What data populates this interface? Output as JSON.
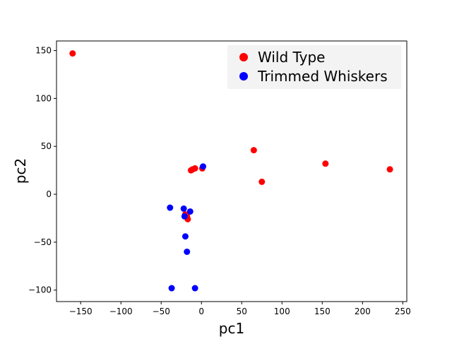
{
  "chart_data": {
    "type": "scatter",
    "title": "",
    "xlabel": "pc1",
    "ylabel": "pc2",
    "xlim": [
      -180,
      255
    ],
    "ylim": [
      -112,
      160
    ],
    "xticks": [
      -150,
      -100,
      -50,
      0,
      50,
      100,
      150,
      200,
      250
    ],
    "yticks": [
      -100,
      -50,
      0,
      50,
      100,
      150
    ],
    "xtick_labels": [
      "−150",
      "−100",
      "−50",
      "0",
      "50",
      "100",
      "150",
      "200",
      "250"
    ],
    "ytick_labels": [
      "−100",
      "−50",
      "0",
      "50",
      "100",
      "150"
    ],
    "grid": false,
    "legend_position": "top-right",
    "series": [
      {
        "name": "Wild Type",
        "color": "#ff0000",
        "points": [
          [
            -160,
            147
          ],
          [
            65,
            46
          ],
          [
            154,
            32
          ],
          [
            234,
            26
          ],
          [
            75,
            13
          ],
          [
            -13,
            25
          ],
          [
            -11,
            26
          ],
          [
            -8,
            27
          ],
          [
            1,
            27
          ],
          [
            -20,
            -21
          ],
          [
            -18,
            -23
          ],
          [
            -17,
            -26
          ]
        ]
      },
      {
        "name": "Trimmed Whiskers",
        "color": "#0000ff",
        "points": [
          [
            2,
            29
          ],
          [
            -39,
            -14
          ],
          [
            -22,
            -15
          ],
          [
            -14,
            -18
          ],
          [
            -21,
            -23
          ],
          [
            -20,
            -44
          ],
          [
            -18,
            -60
          ],
          [
            -37,
            -98
          ],
          [
            -8,
            -98
          ]
        ]
      }
    ]
  }
}
